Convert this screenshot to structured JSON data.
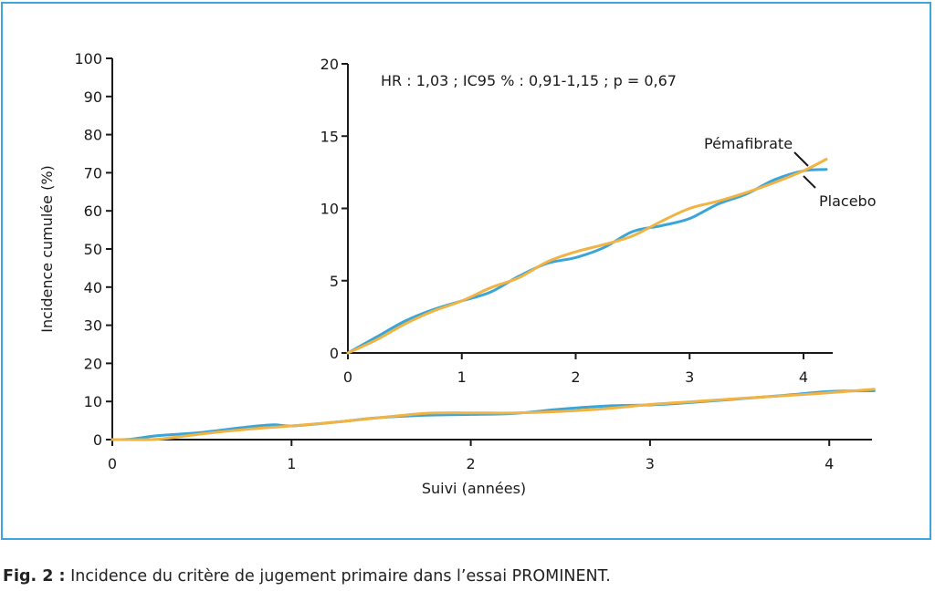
{
  "chart_data": [
    {
      "type": "line",
      "xlabel": "Suivi (années)",
      "ylabel": "Incidence cumulée (%)",
      "xlim": [
        0,
        4.25
      ],
      "ylim": [
        0,
        100
      ],
      "x_ticks": [
        0,
        1,
        2,
        3,
        4
      ],
      "y_ticks": [
        0,
        10,
        20,
        30,
        40,
        50,
        60,
        70,
        80,
        90,
        100
      ],
      "grid": false,
      "series": [
        {
          "name": "Placebo",
          "color": "#3aa5d8",
          "x": [
            0,
            0.1,
            0.25,
            0.5,
            0.75,
            0.9,
            1.0,
            1.25,
            1.5,
            1.75,
            2.0,
            2.25,
            2.5,
            2.75,
            3.0,
            3.25,
            3.5,
            3.75,
            4.0,
            4.25
          ],
          "y": [
            0,
            0.1,
            1.0,
            1.9,
            3.3,
            3.9,
            3.6,
            4.6,
            5.8,
            6.4,
            6.6,
            6.9,
            8.0,
            8.8,
            9.1,
            9.8,
            10.7,
            11.6,
            12.6,
            12.8
          ]
        },
        {
          "name": "Pémafibrate",
          "color": "#f0b344",
          "x": [
            0,
            0.25,
            0.5,
            0.75,
            1.0,
            1.25,
            1.5,
            1.75,
            2.0,
            2.25,
            2.5,
            2.75,
            3.0,
            3.25,
            3.5,
            3.75,
            4.0,
            4.25
          ],
          "y": [
            0,
            0.1,
            1.5,
            2.7,
            3.6,
            4.6,
            5.8,
            6.9,
            7.0,
            7.0,
            7.4,
            8.1,
            9.2,
            10.0,
            10.8,
            11.5,
            12.3,
            13.2
          ]
        }
      ]
    },
    {
      "type": "line",
      "annotation": "HR : 1,03 ; IC95 % : 0,91-1,15 ; p = 0,67",
      "xlim": [
        0,
        4.25
      ],
      "ylim": [
        0,
        20
      ],
      "x_ticks": [
        0,
        1,
        2,
        3,
        4
      ],
      "y_ticks": [
        0,
        5,
        10,
        15,
        20
      ],
      "grid": false,
      "series": [
        {
          "name": "Placebo",
          "color": "#3aa5d8",
          "x": [
            0,
            0.25,
            0.5,
            0.75,
            1.0,
            1.25,
            1.5,
            1.75,
            2.0,
            2.25,
            2.5,
            2.75,
            3.0,
            3.25,
            3.5,
            3.75,
            4.0,
            4.2
          ],
          "y": [
            0,
            1.1,
            2.2,
            3.0,
            3.6,
            4.2,
            5.3,
            6.2,
            6.6,
            7.3,
            8.4,
            8.8,
            9.3,
            10.3,
            11.0,
            12.0,
            12.6,
            12.7
          ]
        },
        {
          "name": "Pémafibrate",
          "color": "#f0b344",
          "x": [
            0,
            0.25,
            0.5,
            0.75,
            1.0,
            1.25,
            1.5,
            1.75,
            2.0,
            2.25,
            2.5,
            2.75,
            3.0,
            3.25,
            3.5,
            3.75,
            4.0,
            4.2
          ],
          "y": [
            0,
            0.9,
            2.0,
            2.9,
            3.6,
            4.5,
            5.2,
            6.3,
            7.0,
            7.5,
            8.1,
            9.1,
            10.0,
            10.5,
            11.1,
            11.8,
            12.6,
            13.4
          ]
        }
      ]
    }
  ],
  "caption": {
    "label": "Fig. 2 :",
    "text": " Incidence du critère de jugement primaire dans l’essai PROMINENT."
  }
}
